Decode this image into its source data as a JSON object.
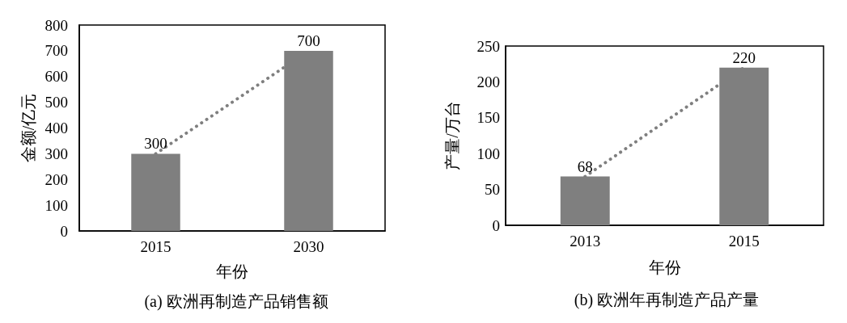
{
  "chart_data": [
    {
      "type": "bar",
      "title": "(a) 欧洲再制造产品销售额",
      "xlabel": "年份",
      "ylabel": "金额/亿元",
      "categories": [
        "2015",
        "2030"
      ],
      "series": [
        {
          "color": "#7f7f7f",
          "values": [
            300,
            700
          ],
          "value_labels": [
            "300",
            "700"
          ]
        },
        {
          "type": "line",
          "values": [
            300,
            700
          ],
          "color": "#7f7f7f",
          "line_style": "dotted",
          "marker": "none"
        }
      ],
      "ylim": [
        0,
        800
      ],
      "yticks": [
        0,
        100,
        200,
        300,
        400,
        500,
        600,
        700,
        800
      ],
      "grid": false
    },
    {
      "type": "bar",
      "title": "(b) 欧洲年再制造产品产量",
      "xlabel": "年份",
      "ylabel": "产量/万台",
      "categories": [
        "2013",
        "2015"
      ],
      "series": [
        {
          "color": "#7f7f7f",
          "values": [
            68,
            220
          ],
          "value_labels": [
            "68",
            "220"
          ]
        },
        {
          "type": "line",
          "values": [
            68,
            220
          ],
          "color": "#7f7f7f",
          "line_style": "dotted",
          "marker": "none"
        }
      ],
      "ylim": [
        0,
        250
      ],
      "yticks": [
        0,
        50,
        100,
        150,
        200,
        250
      ],
      "grid": false
    }
  ]
}
